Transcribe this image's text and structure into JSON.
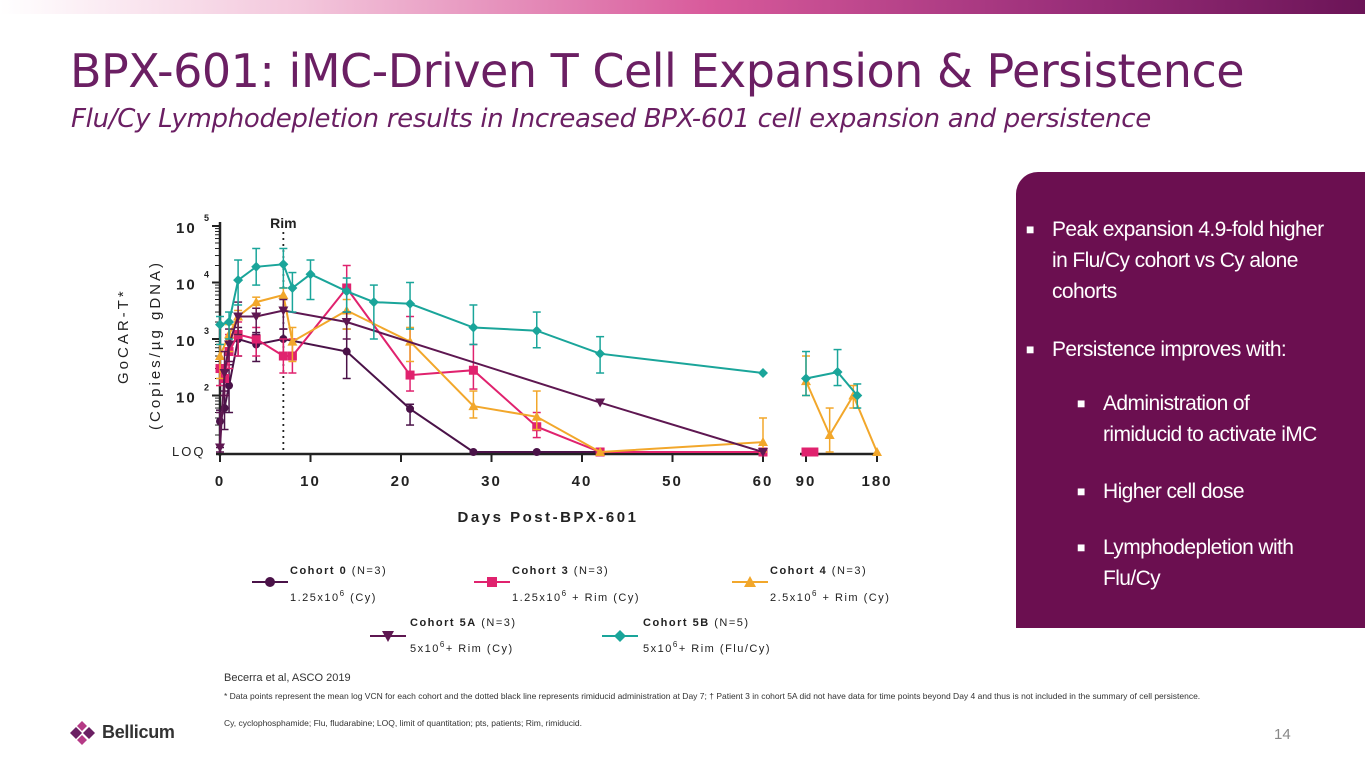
{
  "slide": {
    "title": "BPX-601: iMC-Driven T Cell Expansion & Persistence",
    "subtitle": "Flu/Cy Lymphodepletion results in Increased BPX-601 cell expansion and persistence",
    "page_number": "14",
    "brand": "Bellicum",
    "citation": "Becerra et al, ASCO 2019",
    "footnotes": [
      "* Data points represent the mean log VCN for each cohort and the dotted black line represents rimiducid administration at Day 7; † Patient 3 in cohort 5A did not have data for time points beyond Day 4 and thus is not included in the summary of cell persistence.",
      "Cy, cyclophosphamide; Flu, fludarabine; LOQ, limit of quantitation; pts, patients; Rim, rimiducid."
    ]
  },
  "panel": {
    "bullet1": [
      "Peak expansion 4.9-fold higher",
      "in Flu/Cy cohort vs Cy alone",
      "cohorts"
    ],
    "bullet2": "Persistence improves with:",
    "sub1": [
      "Administration of",
      "rimiducid to activate iMC"
    ],
    "sub2": "Higher cell dose",
    "sub3": [
      "Lymphodepletion with",
      "Flu/Cy"
    ]
  },
  "colors": {
    "brand": "#6b1f63",
    "panel": "#6b0f50",
    "cohort0": "#4a1248",
    "cohort3": "#e0226e",
    "cohort4": "#f2a72b",
    "cohort5a": "#5e1751",
    "cohort5b": "#1aa59a"
  },
  "legend": [
    {
      "key": "c0",
      "name": "Cohort 0",
      "n": "(N=3)",
      "dose": "1.25x10",
      "exp": "6",
      "regimen": "(Cy)",
      "marker": "circle"
    },
    {
      "key": "c3",
      "name": "Cohort 3",
      "n": "(N=3)",
      "dose": "1.25x10",
      "exp": "6",
      "regimen": "+ Rim (Cy)",
      "marker": "square"
    },
    {
      "key": "c4",
      "name": "Cohort 4",
      "n": "(N=3)",
      "dose": "2.5x10",
      "exp": "6",
      "regimen": "+ Rim (Cy)",
      "marker": "triangle-up"
    },
    {
      "key": "c5a",
      "name": "Cohort 5A",
      "n": "(N=3)",
      "dose": "5x10",
      "exp": "6",
      "regimen": "+ Rim (Cy)",
      "marker": "triangle-down"
    },
    {
      "key": "c5b",
      "name": "Cohort 5B",
      "n": "(N=5)",
      "dose": "5x10",
      "exp": "6",
      "regimen": "+ Rim (Flu/Cy)",
      "marker": "diamond"
    }
  ],
  "chart_data": {
    "type": "line",
    "title": "",
    "xlabel": "Days Post-BPX-601",
    "ylabel": [
      "GoCAR-T*",
      "(Copies/µg gDNA)"
    ],
    "y_scale": "log10",
    "ylim": [
      10,
      100000
    ],
    "y_ticks": [
      {
        "v": 100000,
        "base": "10",
        "exp": "5"
      },
      {
        "v": 10000,
        "base": "10",
        "exp": "4"
      },
      {
        "v": 1000,
        "base": "10",
        "exp": "3"
      },
      {
        "v": 100,
        "base": "10",
        "exp": "2"
      }
    ],
    "loq_label": "LOQ",
    "loq_value": 10,
    "x_scale": "piecewise-linear (0-60 linear, then 90, 180)",
    "x_tick_labels": [
      "0",
      "10",
      "20",
      "30",
      "40",
      "50",
      "60",
      "90",
      "180"
    ],
    "annotation": {
      "text": "Rim",
      "x": 7
    },
    "series": [
      {
        "key": "c0",
        "name": "Cohort 0",
        "color": "#4a1248",
        "marker": "circle",
        "points": [
          [
            0,
            35,
            12,
            55
          ],
          [
            0.5,
            60,
            25,
            120
          ],
          [
            1,
            150,
            50,
            350
          ],
          [
            2,
            1000,
            500,
            1600
          ],
          [
            4,
            800,
            400,
            1300
          ],
          [
            7,
            1000,
            500,
            1500
          ],
          [
            14,
            600,
            200,
            1500
          ],
          [
            21,
            58,
            30,
            70
          ],
          [
            28,
            10,
            10,
            10
          ],
          [
            35,
            10,
            10,
            10
          ],
          [
            42,
            10,
            10,
            10
          ],
          [
            60,
            10,
            10,
            10
          ],
          [
            90,
            10,
            10,
            10
          ],
          [
            100,
            10,
            10,
            10
          ]
        ]
      },
      {
        "key": "c3",
        "name": "Cohort 3",
        "color": "#e0226e",
        "marker": "square",
        "points": [
          [
            0,
            300,
            150,
            450
          ],
          [
            0.5,
            200,
            100,
            350
          ],
          [
            1,
            600,
            300,
            1200
          ],
          [
            2,
            1200,
            500,
            2000
          ],
          [
            4,
            1000,
            500,
            1600
          ],
          [
            7,
            500,
            250,
            1000
          ],
          [
            8,
            500,
            250,
            1000
          ],
          [
            14,
            8000,
            3000,
            20000
          ],
          [
            21,
            230,
            120,
            2500
          ],
          [
            28,
            280,
            130,
            800
          ],
          [
            35,
            28,
            18,
            50
          ],
          [
            42,
            10,
            10,
            10
          ],
          [
            60,
            10,
            10,
            10
          ],
          [
            90,
            10,
            10,
            10
          ],
          [
            100,
            10,
            10,
            10
          ]
        ]
      },
      {
        "key": "c4",
        "name": "Cohort 4",
        "color": "#f2a72b",
        "marker": "triangle-up",
        "points": [
          [
            0,
            500,
            200,
            800
          ],
          [
            1,
            1200,
            600,
            1800
          ],
          [
            2,
            2500,
            1200,
            3200
          ],
          [
            4,
            4500,
            2500,
            5500
          ],
          [
            7,
            6000,
            3500,
            8000
          ],
          [
            8,
            900,
            400,
            1600
          ],
          [
            14,
            3200,
            1500,
            5000
          ],
          [
            21,
            900,
            400,
            1600
          ],
          [
            28,
            65,
            40,
            120
          ],
          [
            35,
            42,
            25,
            120
          ],
          [
            42,
            10,
            10,
            10
          ],
          [
            60,
            15,
            10,
            40
          ],
          [
            90,
            180,
            100,
            500
          ],
          [
            120,
            20,
            10,
            60
          ],
          [
            150,
            100,
            60,
            150
          ],
          [
            180,
            10,
            10,
            10
          ]
        ]
      },
      {
        "key": "c5a",
        "name": "Cohort 5A",
        "color": "#5e1751",
        "marker": "triangle-down",
        "points": [
          [
            0,
            12,
            10,
            50
          ],
          [
            0.5,
            250,
            100,
            600
          ],
          [
            1,
            800,
            400,
            1500
          ],
          [
            2,
            2500,
            1200,
            4500
          ],
          [
            4,
            2500,
            1200,
            3500
          ],
          [
            7,
            3200,
            1500,
            5000
          ],
          [
            14,
            2000,
            1000,
            3000
          ],
          [
            42,
            75,
            75,
            75
          ],
          [
            60,
            10,
            10,
            10
          ]
        ]
      },
      {
        "key": "c5b",
        "name": "Cohort 5B",
        "color": "#1aa59a",
        "marker": "diamond",
        "points": [
          [
            0,
            1800,
            800,
            2500
          ],
          [
            1,
            2000,
            1000,
            3000
          ],
          [
            2,
            11000,
            4000,
            25000
          ],
          [
            4,
            19000,
            9000,
            40000
          ],
          [
            7,
            21000,
            8000,
            40000
          ],
          [
            8,
            8000,
            3000,
            15000
          ],
          [
            10,
            14000,
            5000,
            25000
          ],
          [
            14,
            7000,
            3000,
            12000
          ],
          [
            17,
            4500,
            1000,
            9000
          ],
          [
            21,
            4200,
            1500,
            10000
          ],
          [
            28,
            1600,
            800,
            4000
          ],
          [
            35,
            1400,
            700,
            3000
          ],
          [
            42,
            550,
            250,
            1100
          ],
          [
            60,
            250,
            250,
            250
          ],
          [
            90,
            200,
            100,
            600
          ],
          [
            130,
            260,
            150,
            650
          ],
          [
            155,
            100,
            60,
            160
          ]
        ]
      }
    ]
  }
}
